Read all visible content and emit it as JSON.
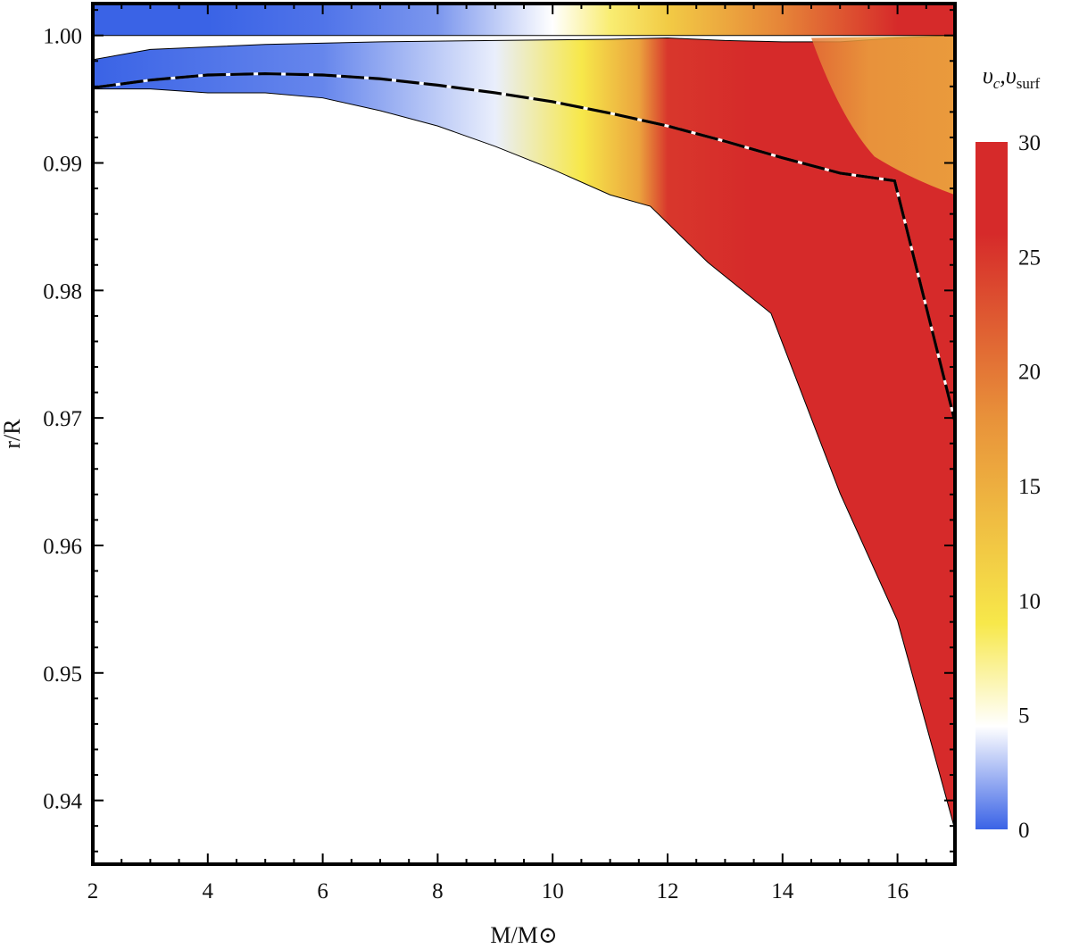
{
  "chart_data": {
    "type": "heatmap",
    "title": "",
    "xlabel": "M/M⊙",
    "ylabel": "r/R",
    "xlim": [
      2,
      17
    ],
    "ylim": [
      0.935,
      1.0025
    ],
    "xticks": [
      2,
      4,
      6,
      8,
      10,
      12,
      14,
      16
    ],
    "xtick_labels": [
      "2",
      "4",
      "6",
      "8",
      "10",
      "12",
      "14",
      "16"
    ],
    "yticks": [
      0.94,
      0.95,
      0.96,
      0.97,
      0.98,
      0.99,
      1.0
    ],
    "ytick_labels": [
      "0.94",
      "0.95",
      "0.96",
      "0.97",
      "0.98",
      "0.99",
      "1.00"
    ],
    "colorbar": {
      "title_main": "υ",
      "title_sub1": "c",
      "title_sep": ",υ",
      "title_sub2": "surf",
      "range": [
        0,
        30
      ],
      "ticks": [
        0,
        5,
        10,
        15,
        20,
        25,
        30
      ],
      "tick_labels": [
        "0",
        "5",
        "10",
        "15",
        "20",
        "25",
        "30"
      ],
      "colors": [
        "#3a63e6",
        "#ffffff",
        "#f7e84a",
        "#e8913a",
        "#d62a2a"
      ],
      "color_stops": [
        0,
        4.5,
        9,
        18,
        26
      ]
    },
    "surface_strip": {
      "x": [
        2,
        4,
        6,
        8,
        10,
        11,
        12,
        14,
        16,
        17
      ],
      "values": [
        0,
        0,
        0.5,
        1.5,
        4.5,
        8,
        12,
        19,
        27,
        30
      ]
    },
    "region_upper_boundary": {
      "x": [
        2,
        3,
        5,
        7,
        9,
        11,
        12,
        13,
        14,
        15,
        16,
        17
      ],
      "y": [
        0.9981,
        0.9989,
        0.9993,
        0.9995,
        0.9996,
        0.9997,
        0.9998,
        0.9996,
        0.9995,
        0.9995,
        0.9998,
        1.0
      ]
    },
    "region_lower_boundary": {
      "x": [
        2,
        3,
        4,
        5,
        6,
        7,
        8,
        9,
        10,
        11,
        11.7,
        12.7,
        13.8,
        15,
        16,
        17
      ],
      "y": [
        0.9958,
        0.9958,
        0.9955,
        0.9955,
        0.9951,
        0.9941,
        0.9929,
        0.9913,
        0.9895,
        0.9875,
        0.9866,
        0.9822,
        0.9782,
        0.9641,
        0.9541,
        0.9377
      ]
    },
    "convective_velocity_map": {
      "x": [
        2,
        6,
        9,
        10.5,
        11.5,
        12,
        13.5,
        15,
        16,
        17
      ],
      "values": [
        0,
        1,
        4,
        9,
        16,
        25,
        28,
        26,
        27,
        29
      ]
    },
    "convective_velocity_upper_right": {
      "x": [
        14.5,
        15.5,
        17
      ],
      "values": [
        20,
        16,
        15
      ]
    },
    "dashed_line": {
      "x": [
        2,
        3,
        4,
        5,
        6,
        7,
        8,
        9,
        10,
        11,
        12,
        13,
        14,
        15,
        15.95,
        17
      ],
      "y": [
        0.9959,
        0.9965,
        0.9969,
        0.997,
        0.9969,
        0.9966,
        0.9961,
        0.9955,
        0.9948,
        0.9939,
        0.9929,
        0.9917,
        0.9904,
        0.9892,
        0.9886,
        0.9697
      ]
    }
  }
}
